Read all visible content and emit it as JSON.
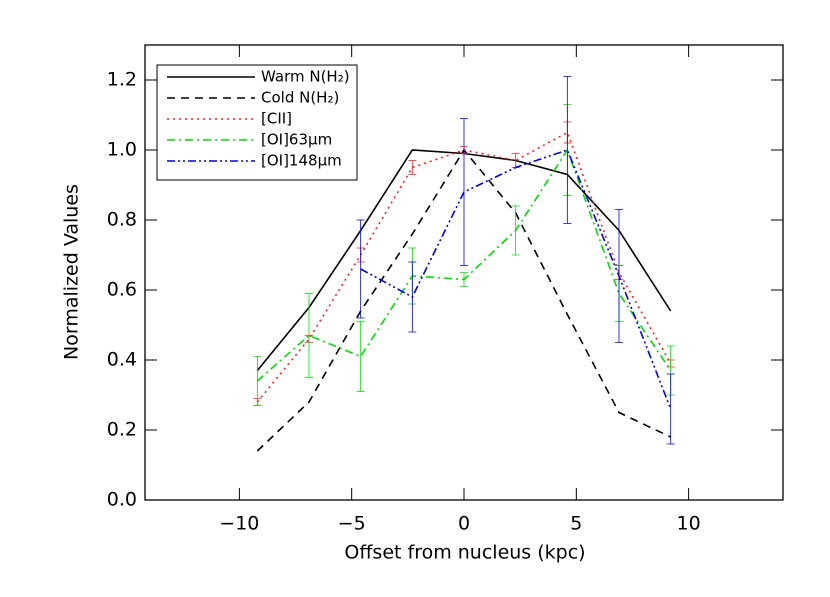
{
  "chart_data": {
    "type": "line",
    "xlabel": "Offset from nucleus (kpc)",
    "ylabel": "Normalized Values",
    "x": [
      -9.2,
      -6.9,
      -4.6,
      -2.3,
      0,
      2.3,
      4.6,
      6.9,
      9.2
    ],
    "xlim": [
      -14.2,
      14.2
    ],
    "xticks": [
      {
        "value": -10,
        "label": "−10"
      },
      {
        "value": -5,
        "label": "−5"
      },
      0,
      5,
      10
    ],
    "ylim": [
      0,
      1.3
    ],
    "yticks": [
      {
        "value": 0,
        "label": "0.0"
      },
      0.2,
      0.4,
      0.6,
      0.8,
      {
        "value": 1,
        "label": "1.0"
      },
      1.2
    ],
    "legend": "upper left",
    "series": [
      {
        "name": "Warm N(H₂)",
        "color": "#000000",
        "dash": "solid",
        "values": [
          0.37,
          0.55,
          0.77,
          1.0,
          0.99,
          0.97,
          0.93,
          0.77,
          0.54
        ]
      },
      {
        "name": "Cold N(H₂)",
        "color": "#000000",
        "dash": "dashed",
        "values": [
          0.14,
          0.28,
          0.54,
          0.76,
          1.0,
          0.82,
          0.53,
          0.25,
          0.18
        ]
      },
      {
        "name": "[CII]",
        "color": "#ff2020",
        "dash": "dotted",
        "values": [
          0.28,
          0.46,
          0.7,
          0.95,
          1.0,
          0.97,
          1.05,
          0.65,
          0.39
        ],
        "errors": [
          0.01,
          0.01,
          0.02,
          0.02,
          0.01,
          0.02,
          0.03,
          0.02,
          0.01
        ]
      },
      {
        "name": "[OI]63μm",
        "color": "#00dd00",
        "dash": "dashdot",
        "values": [
          0.34,
          0.47,
          0.41,
          0.64,
          0.63,
          0.77,
          1.0,
          0.59,
          0.37
        ],
        "errors": [
          0.07,
          0.12,
          0.1,
          0.08,
          0.02,
          0.07,
          0.13,
          0.08,
          0.07
        ]
      },
      {
        "name": "[OI]148μm",
        "color": "#0000ee",
        "dash": "dashdotdot",
        "values": [
          null,
          null,
          0.66,
          0.58,
          0.88,
          0.95,
          1.0,
          0.64,
          0.26
        ],
        "errors": [
          null,
          null,
          0.14,
          0.1,
          0.21,
          null,
          0.21,
          0.19,
          0.1
        ]
      }
    ]
  }
}
